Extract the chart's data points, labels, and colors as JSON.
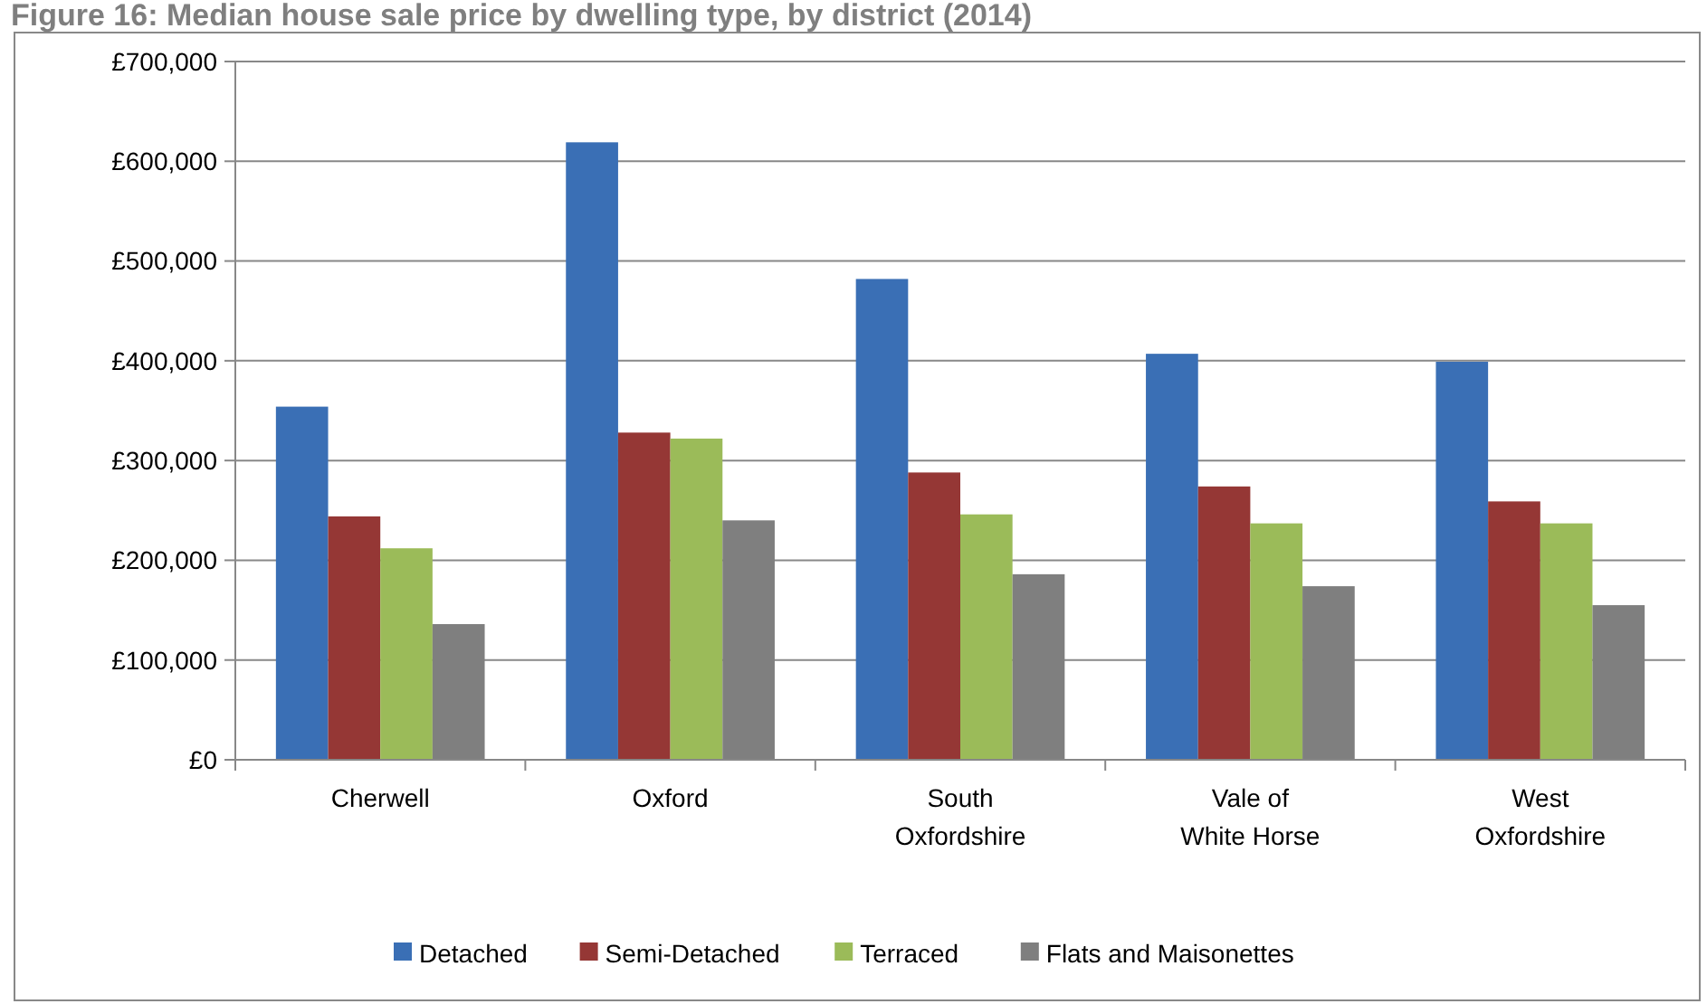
{
  "chart_data": {
    "type": "bar",
    "title": "Figure 16: Median house sale price by dwelling type, by district (2014)",
    "categories": [
      "Cherwell",
      "Oxford",
      "South Oxfordshire",
      "Vale of White Horse",
      "West Oxfordshire"
    ],
    "series": [
      {
        "name": "Detached",
        "color": "#3a6fb5",
        "values": [
          354000,
          619000,
          482000,
          407000,
          399000
        ]
      },
      {
        "name": "Semi-Detached",
        "color": "#953735",
        "values": [
          244000,
          328000,
          288000,
          274000,
          259000
        ]
      },
      {
        "name": "Terraced",
        "color": "#9bbb59",
        "values": [
          212000,
          322000,
          246000,
          237000,
          237000
        ]
      },
      {
        "name": "Flats and Maisonettes",
        "color": "#7f7f7f",
        "values": [
          136000,
          240000,
          186000,
          174000,
          155000
        ]
      }
    ],
    "ylim": [
      0,
      700000
    ],
    "yticks": [
      {
        "value": 0,
        "label": "£0"
      },
      {
        "value": 100000,
        "label": "£100,000"
      },
      {
        "value": 200000,
        "label": "£200,000"
      },
      {
        "value": 300000,
        "label": "£300,000"
      },
      {
        "value": 400000,
        "label": "£400,000"
      },
      {
        "value": 500000,
        "label": "£500,000"
      },
      {
        "value": 600000,
        "label": "£600,000"
      },
      {
        "value": 700000,
        "label": "£700,000"
      }
    ],
    "grid": "y",
    "legend": "bottom"
  }
}
